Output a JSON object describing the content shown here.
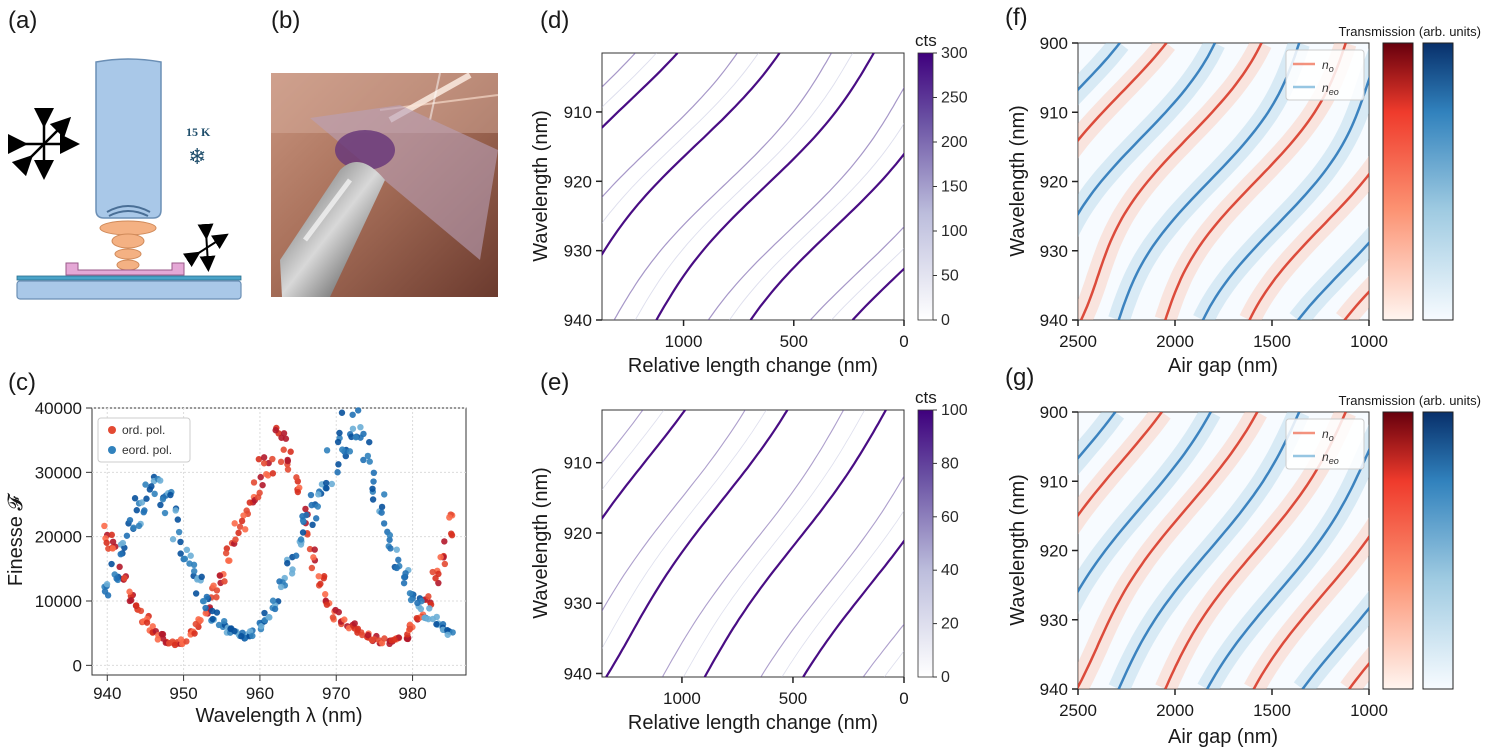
{
  "panel_labels": {
    "a": "(a)",
    "b": "(b)",
    "c": "(c)",
    "d": "(d)",
    "e": "(e)",
    "f": "(f)",
    "g": "(g)"
  },
  "schematic": {
    "temperature": "15 K",
    "snowflake": "❄"
  },
  "colors": {
    "red": "#d7301f",
    "blue": "#2171b5",
    "purple": "#4a1486",
    "ord_dot": "#e34a33",
    "eord_dot": "#3182bd"
  },
  "icons": [
    "arrows-icon",
    "snowflake-icon",
    "objective-icon",
    "sample-photo"
  ],
  "chart_data": [
    {
      "id": "c",
      "type": "scatter",
      "xlabel": "Wavelength λ (nm)",
      "ylabel": "Finesse 𝓕",
      "xlim": [
        938,
        987
      ],
      "ylim": [
        -1500,
        40000
      ],
      "xticks": [
        940,
        950,
        960,
        970,
        980
      ],
      "yticks": [
        0,
        10000,
        20000,
        30000,
        40000
      ],
      "legend": {
        "position": "top-left",
        "entries": [
          "ord. pol.",
          "eord. pol."
        ]
      },
      "series": [
        {
          "name": "ord. pol.",
          "points": [
            [
              940,
              20000
            ],
            [
              941,
              18500
            ],
            [
              942,
              14000
            ],
            [
              943,
              11000
            ],
            [
              944,
              8800
            ],
            [
              945,
              7000
            ],
            [
              946,
              5600
            ],
            [
              947,
              4500
            ],
            [
              948,
              3800
            ],
            [
              949,
              3500
            ],
            [
              950,
              3700
            ],
            [
              951,
              4800
            ],
            [
              952,
              6600
            ],
            [
              953,
              8700
            ],
            [
              954,
              11400
            ],
            [
              955,
              14300
            ],
            [
              956,
              17300
            ],
            [
              957,
              20200
            ],
            [
              958,
              23000
            ],
            [
              959,
              26000
            ],
            [
              960,
              29000
            ],
            [
              961,
              31500
            ],
            [
              962,
              33500
            ],
            [
              963,
              34500
            ],
            [
              964,
              33000
            ],
            [
              965,
              28500
            ],
            [
              966,
              22500
            ],
            [
              967,
              17000
            ],
            [
              968,
              13000
            ],
            [
              969,
              10000
            ],
            [
              970,
              8000
            ],
            [
              971,
              6800
            ],
            [
              972,
              6000
            ],
            [
              973,
              5300
            ],
            [
              974,
              4600
            ],
            [
              975,
              4100
            ],
            [
              976,
              3800
            ],
            [
              977,
              3700
            ],
            [
              978,
              3900
            ],
            [
              979,
              4500
            ],
            [
              980,
              5900
            ],
            [
              981,
              7800
            ],
            [
              982,
              10400
            ],
            [
              983,
              13800
            ],
            [
              984,
              17600
            ],
            [
              985,
              22000
            ]
          ]
        },
        {
          "name": "eord. pol.",
          "points": [
            [
              940,
              11500
            ],
            [
              941,
              14800
            ],
            [
              942,
              18300
            ],
            [
              943,
              21500
            ],
            [
              944,
              24000
            ],
            [
              945,
              25800
            ],
            [
              946,
              26700
            ],
            [
              947,
              26500
            ],
            [
              948,
              25000
            ],
            [
              949,
              22000
            ],
            [
              950,
              18500
            ],
            [
              951,
              15500
            ],
            [
              952,
              12500
            ],
            [
              953,
              9800
            ],
            [
              954,
              7700
            ],
            [
              955,
              6300
            ],
            [
              956,
              5400
            ],
            [
              957,
              4900
            ],
            [
              958,
              4700
            ],
            [
              959,
              4900
            ],
            [
              960,
              6000
            ],
            [
              961,
              7500
            ],
            [
              962,
              9600
            ],
            [
              963,
              12300
            ],
            [
              964,
              15400
            ],
            [
              965,
              18600
            ],
            [
              966,
              21600
            ],
            [
              967,
              24500
            ],
            [
              968,
              27500
            ],
            [
              969,
              30500
            ],
            [
              970,
              33500
            ],
            [
              971,
              36000
            ],
            [
              972,
              37200
            ],
            [
              973,
              36000
            ],
            [
              974,
              32500
            ],
            [
              975,
              28500
            ],
            [
              976,
              24000
            ],
            [
              977,
              20000
            ],
            [
              978,
              16500
            ],
            [
              979,
              13500
            ],
            [
              980,
              11000
            ],
            [
              981,
              9400
            ],
            [
              982,
              8000
            ],
            [
              983,
              7000
            ],
            [
              984,
              6000
            ],
            [
              985,
              5300
            ]
          ]
        }
      ]
    },
    {
      "id": "d",
      "type": "heatmap",
      "xlabel": "Relative length change (nm)",
      "ylabel": "Wavelength (nm)",
      "xlim": [
        1370,
        0
      ],
      "ylim": [
        901.5,
        940
      ],
      "xticks": [
        1000,
        500,
        0
      ],
      "yticks": [
        910,
        920,
        930,
        940
      ],
      "colorbar": {
        "label": "cts",
        "range": [
          0,
          300
        ],
        "ticks": [
          0,
          50,
          100,
          150,
          200,
          250,
          300
        ]
      },
      "modes": {
        "slope_nm_per_nm": -0.063,
        "fsr_nm_length": 460,
        "period_length": 460
      }
    },
    {
      "id": "e",
      "type": "heatmap",
      "xlabel": "Relative length change (nm)",
      "ylabel": "Wavelength (nm)",
      "xlim": [
        1360,
        0
      ],
      "ylim": [
        902.5,
        940.5
      ],
      "xticks": [
        1000,
        500,
        0
      ],
      "yticks": [
        910,
        920,
        930,
        940
      ],
      "colorbar": {
        "label": "cts",
        "range": [
          0,
          100
        ],
        "ticks": [
          0,
          20,
          40,
          60,
          80,
          100
        ]
      },
      "modes": {
        "slope_nm_per_nm": -0.063,
        "period_length": 460
      }
    },
    {
      "id": "f",
      "type": "heatmap",
      "xlabel": "Air gap (nm)",
      "ylabel": "Wavelength (nm)",
      "xlim": [
        2500,
        1000
      ],
      "ylim": [
        900,
        940
      ],
      "xticks": [
        2500,
        2000,
        1500,
        1000
      ],
      "yticks": [
        900,
        910,
        920,
        930,
        940
      ],
      "legend": {
        "position": "top-right",
        "entries": [
          "n_o",
          "n_eo"
        ]
      },
      "colorbar": {
        "label": "Transmission (arb. units)",
        "maps": [
          "Reds",
          "Blues"
        ]
      }
    },
    {
      "id": "g",
      "type": "heatmap",
      "xlabel": "Air gap (nm)",
      "ylabel": "Wavelength (nm)",
      "xlim": [
        2500,
        1000
      ],
      "ylim": [
        900,
        940
      ],
      "xticks": [
        2500,
        2000,
        1500,
        1000
      ],
      "yticks": [
        900,
        910,
        920,
        930,
        940
      ],
      "legend": {
        "position": "top-right",
        "entries": [
          "n_o",
          "n_eo"
        ]
      },
      "colorbar": {
        "label": "Transmission (arb. units)",
        "maps": [
          "Reds",
          "Blues"
        ]
      }
    }
  ]
}
